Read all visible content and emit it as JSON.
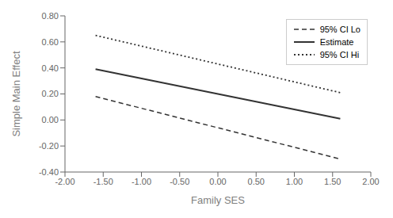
{
  "chart_data": {
    "type": "line",
    "x": [
      -1.6,
      1.6
    ],
    "series": [
      {
        "name": "95% CI Lo",
        "color": "#333333",
        "values": [
          0.18,
          -0.3
        ],
        "line_style": "dashed"
      },
      {
        "name": "Estimate",
        "color": "#333333",
        "values": [
          0.39,
          0.01
        ],
        "line_style": "solid"
      },
      {
        "name": "95% CI Hi",
        "color": "#333333",
        "values": [
          0.65,
          0.21
        ],
        "line_style": "dotted"
      }
    ],
    "xlabel": "Family SES",
    "ylabel": "Simple Main Effect",
    "xlim": [
      -2.0,
      2.0
    ],
    "ylim": [
      -0.4,
      0.8
    ],
    "xticks": [
      {
        "value": -2.0,
        "label": "-2.00"
      },
      {
        "value": -1.5,
        "label": "-1.50"
      },
      {
        "value": -1.0,
        "label": "-1.00"
      },
      {
        "value": -0.5,
        "label": "-0.50"
      },
      {
        "value": 0.0,
        "label": "0.00"
      },
      {
        "value": 0.5,
        "label": "0.50"
      },
      {
        "value": 1.0,
        "label": "1.00"
      },
      {
        "value": 1.5,
        "label": "1.50"
      },
      {
        "value": 2.0,
        "label": "2.00"
      }
    ],
    "yticks": [
      {
        "value": -0.4,
        "label": "-0.40"
      },
      {
        "value": -0.2,
        "label": "-0.20"
      },
      {
        "value": 0.0,
        "label": "0.00"
      },
      {
        "value": 0.2,
        "label": "0.20"
      },
      {
        "value": 0.4,
        "label": "0.40"
      },
      {
        "value": 0.6,
        "label": "0.60"
      },
      {
        "value": 0.8,
        "label": "0.80"
      }
    ],
    "legend": "upper right",
    "grid": false
  }
}
